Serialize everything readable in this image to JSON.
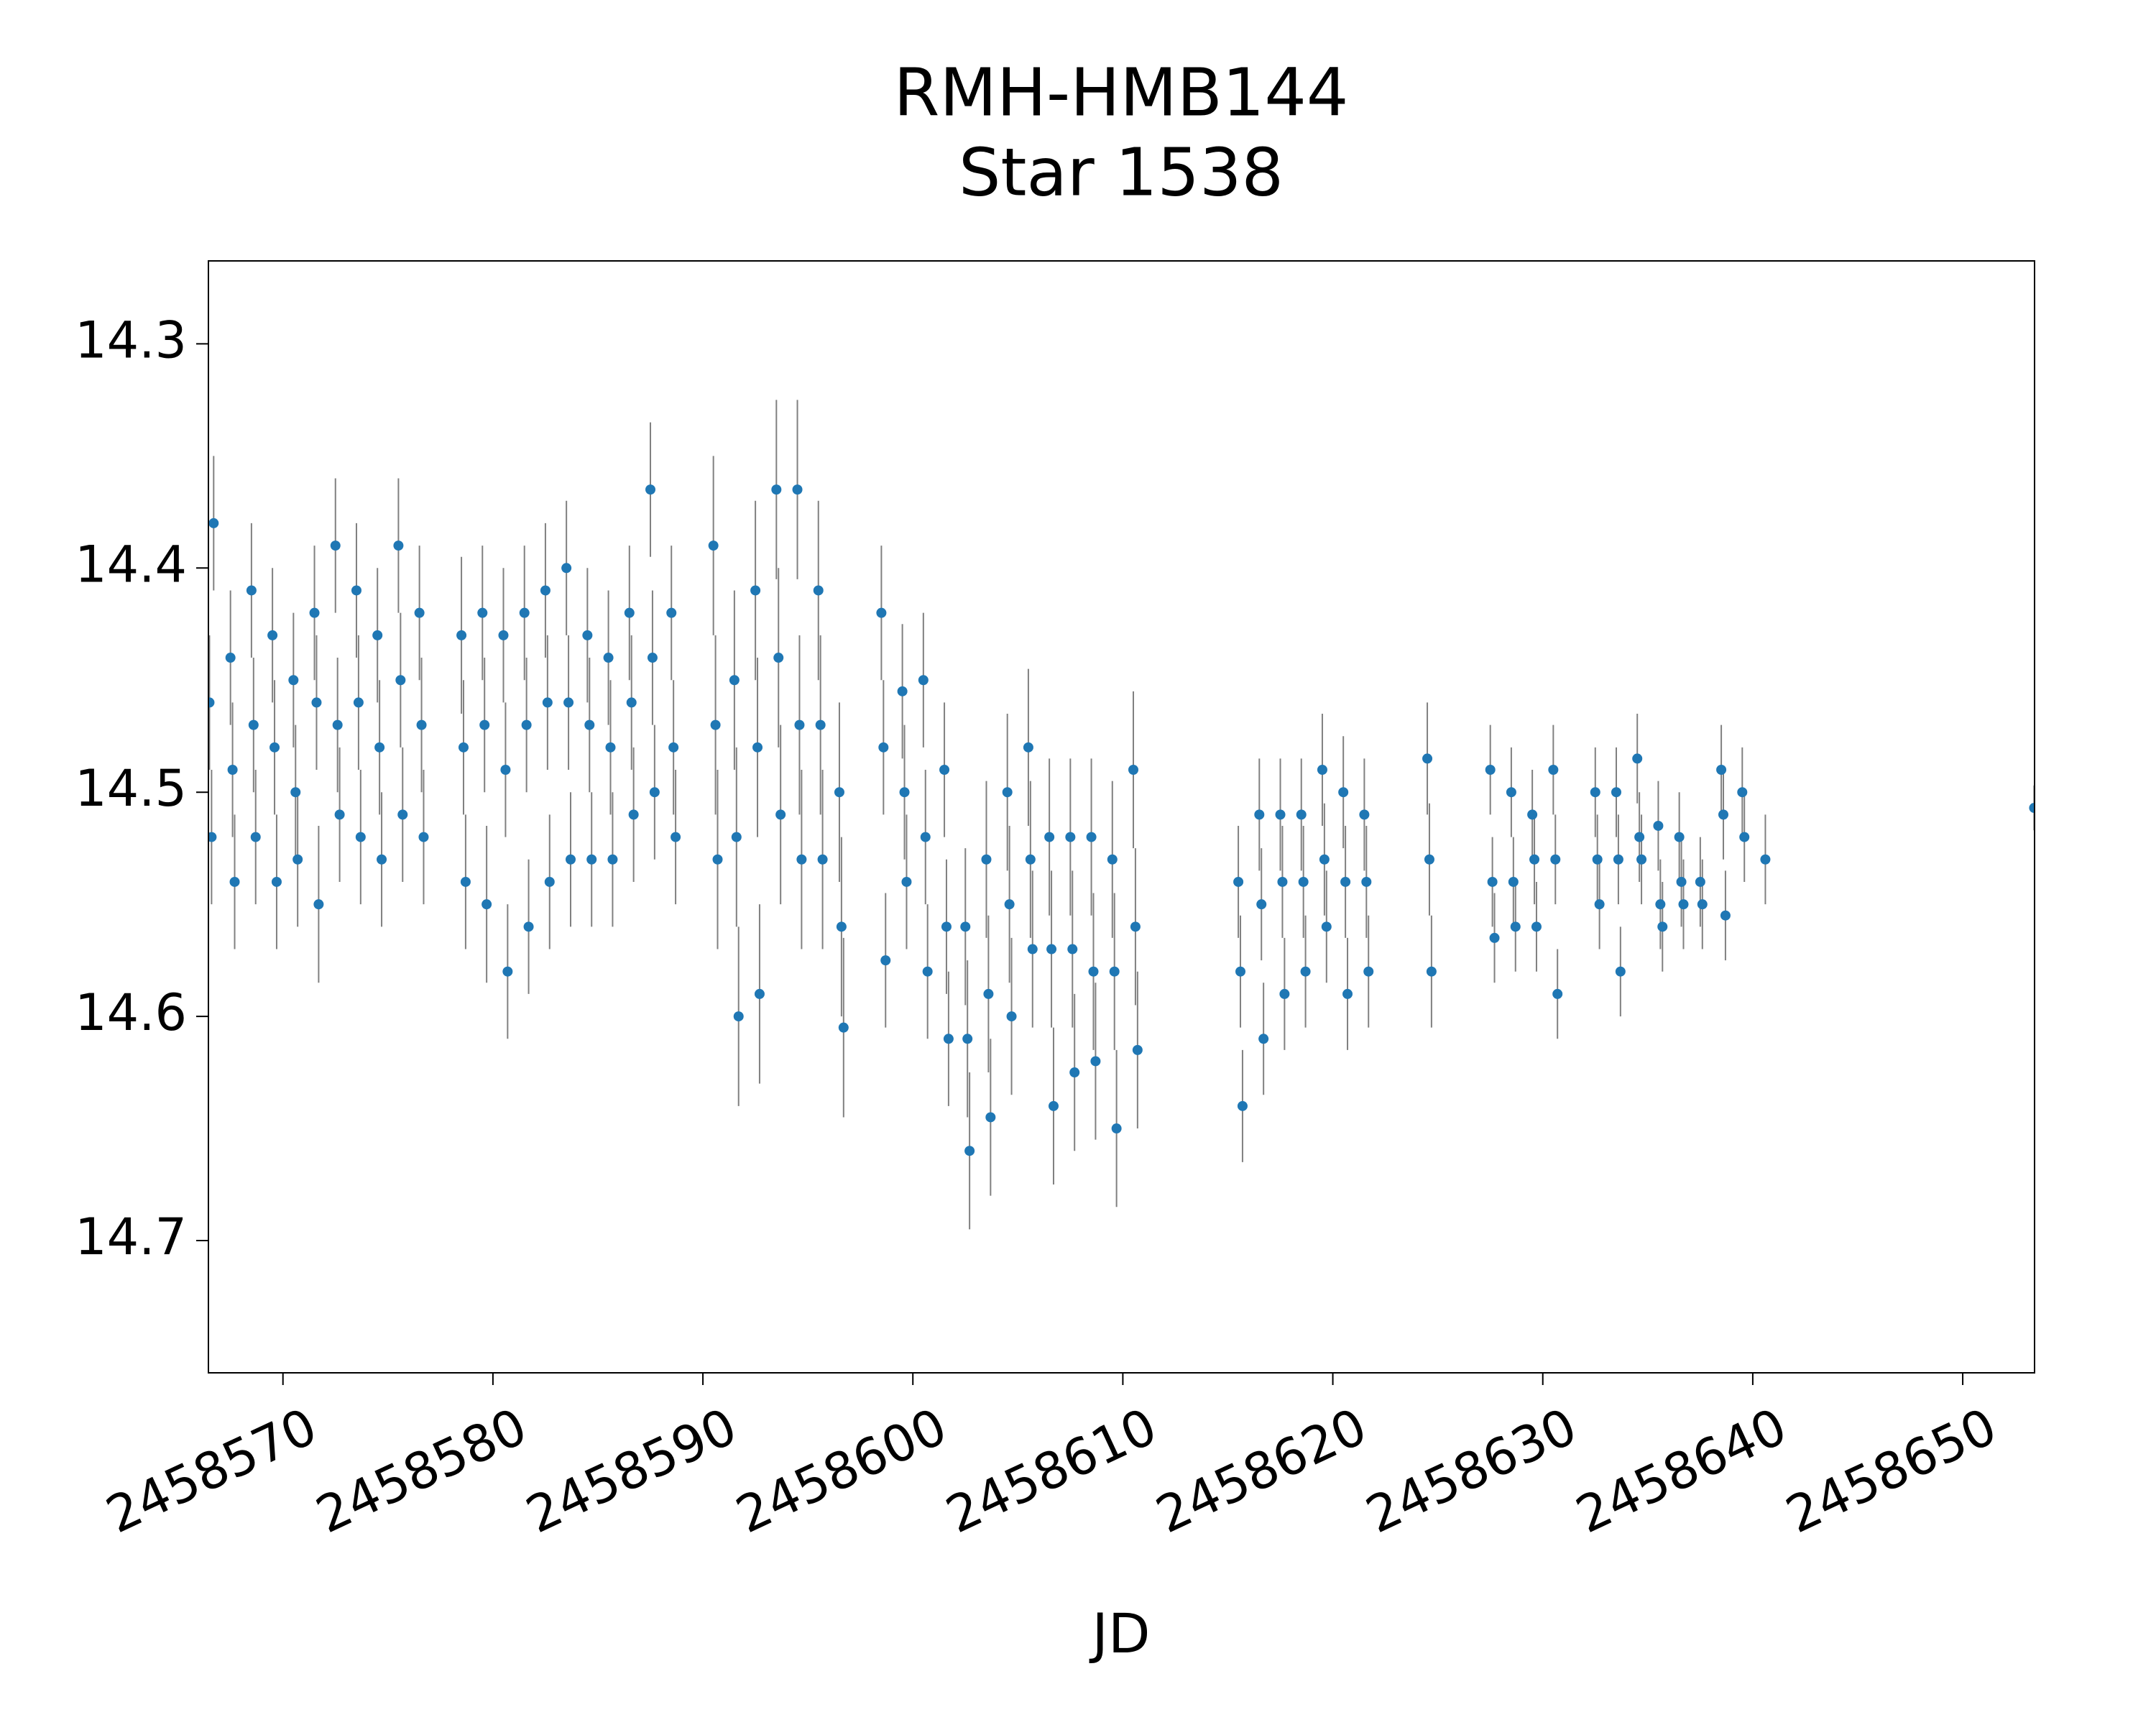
{
  "chart_data": {
    "type": "errorbar",
    "title": "RMH-HMB144",
    "subtitle": "Star 1538",
    "x_label": "JD",
    "xlim": [
      2458566.45,
      2458653.42
    ],
    "xticks": [
      2458570,
      2458580,
      2458590,
      2458600,
      2458610,
      2458620,
      2458630,
      2458640,
      2458650
    ],
    "ylim": [
      14.263,
      14.759
    ],
    "y_inverted": true,
    "yticks": [
      14.3,
      14.4,
      14.5,
      14.6,
      14.7
    ],
    "grid": false,
    "series": [
      {
        "color": "#1f77b4",
        "error_color": "#808080",
        "x": [
          2458566.5,
          2458566.6,
          2458566.7,
          2458567.5,
          2458567.6,
          2458567.7,
          2458568.5,
          2458568.6,
          2458568.7,
          2458569.5,
          2458569.6,
          2458569.7,
          2458570.5,
          2458570.6,
          2458570.7,
          2458571.5,
          2458571.6,
          2458571.7,
          2458572.5,
          2458572.6,
          2458572.7,
          2458573.5,
          2458573.6,
          2458573.7,
          2458574.5,
          2458574.6,
          2458574.7,
          2458575.5,
          2458575.6,
          2458575.7,
          2458576.5,
          2458576.6,
          2458576.7,
          2458578.5,
          2458578.6,
          2458578.7,
          2458579.5,
          2458579.6,
          2458579.7,
          2458580.5,
          2458580.6,
          2458580.7,
          2458581.5,
          2458581.6,
          2458581.7,
          2458582.5,
          2458582.6,
          2458582.7,
          2458583.5,
          2458583.6,
          2458583.7,
          2458584.5,
          2458584.6,
          2458584.7,
          2458585.5,
          2458585.6,
          2458585.7,
          2458586.5,
          2458586.6,
          2458586.7,
          2458587.5,
          2458587.6,
          2458587.7,
          2458588.5,
          2458588.6,
          2458588.7,
          2458590.5,
          2458590.6,
          2458590.7,
          2458591.5,
          2458591.6,
          2458591.7,
          2458592.5,
          2458592.6,
          2458592.7,
          2458593.5,
          2458593.6,
          2458593.7,
          2458594.5,
          2458594.6,
          2458594.7,
          2458595.5,
          2458595.6,
          2458595.7,
          2458596.5,
          2458596.6,
          2458596.7,
          2458598.5,
          2458598.6,
          2458598.7,
          2458599.5,
          2458599.6,
          2458599.7,
          2458600.5,
          2458600.6,
          2458600.7,
          2458601.5,
          2458601.6,
          2458601.7,
          2458602.5,
          2458602.6,
          2458602.7,
          2458603.5,
          2458603.6,
          2458603.7,
          2458604.5,
          2458604.6,
          2458604.7,
          2458605.5,
          2458605.6,
          2458605.7,
          2458606.5,
          2458606.6,
          2458606.7,
          2458607.5,
          2458607.6,
          2458607.7,
          2458608.5,
          2458608.6,
          2458608.7,
          2458609.5,
          2458609.6,
          2458609.7,
          2458610.5,
          2458610.6,
          2458610.7,
          2458615.5,
          2458615.6,
          2458615.7,
          2458616.5,
          2458616.6,
          2458616.7,
          2458617.5,
          2458617.6,
          2458617.7,
          2458618.5,
          2458618.6,
          2458618.7,
          2458619.5,
          2458619.6,
          2458619.7,
          2458620.5,
          2458620.6,
          2458620.7,
          2458621.5,
          2458621.6,
          2458621.7,
          2458624.5,
          2458624.6,
          2458624.7,
          2458627.5,
          2458627.6,
          2458627.7,
          2458628.5,
          2458628.6,
          2458628.7,
          2458629.5,
          2458629.6,
          2458629.7,
          2458630.5,
          2458630.6,
          2458630.7,
          2458632.5,
          2458632.6,
          2458632.7,
          2458633.5,
          2458633.6,
          2458633.7,
          2458634.5,
          2458634.6,
          2458634.7,
          2458635.5,
          2458635.6,
          2458635.7,
          2458636.5,
          2458636.6,
          2458636.7,
          2458637.5,
          2458637.6,
          2458638.5,
          2458638.6,
          2458638.7,
          2458639.5,
          2458639.6,
          2458640.6,
          2458653.4
        ],
        "values": [
          14.46,
          14.52,
          14.38,
          14.44,
          14.49,
          14.54,
          14.41,
          14.47,
          14.52,
          14.43,
          14.48,
          14.54,
          14.45,
          14.5,
          14.53,
          14.42,
          14.46,
          14.55,
          14.39,
          14.47,
          14.51,
          14.41,
          14.46,
          14.52,
          14.43,
          14.48,
          14.53,
          14.39,
          14.45,
          14.51,
          14.42,
          14.47,
          14.52,
          14.43,
          14.48,
          14.54,
          14.42,
          14.47,
          14.55,
          14.43,
          14.49,
          14.58,
          14.42,
          14.47,
          14.56,
          14.41,
          14.46,
          14.54,
          14.4,
          14.46,
          14.53,
          14.43,
          14.47,
          14.53,
          14.44,
          14.48,
          14.53,
          14.42,
          14.46,
          14.51,
          14.365,
          14.44,
          14.5,
          14.42,
          14.48,
          14.52,
          14.39,
          14.47,
          14.53,
          14.45,
          14.52,
          14.6,
          14.41,
          14.48,
          14.59,
          14.365,
          14.44,
          14.51,
          14.365,
          14.47,
          14.53,
          14.41,
          14.47,
          14.53,
          14.5,
          14.56,
          14.605,
          14.42,
          14.48,
          14.575,
          14.455,
          14.5,
          14.54,
          14.45,
          14.52,
          14.58,
          14.49,
          14.56,
          14.61,
          14.56,
          14.61,
          14.66,
          14.53,
          14.59,
          14.645,
          14.5,
          14.55,
          14.6,
          14.48,
          14.53,
          14.57,
          14.52,
          14.57,
          14.64,
          14.52,
          14.57,
          14.625,
          14.52,
          14.58,
          14.62,
          14.53,
          14.58,
          14.65,
          14.49,
          14.56,
          14.615,
          14.54,
          14.58,
          14.64,
          14.51,
          14.55,
          14.61,
          14.51,
          14.54,
          14.59,
          14.51,
          14.54,
          14.58,
          14.49,
          14.53,
          14.56,
          14.5,
          14.54,
          14.59,
          14.51,
          14.54,
          14.58,
          14.485,
          14.53,
          14.58,
          14.49,
          14.54,
          14.565,
          14.5,
          14.54,
          14.56,
          14.51,
          14.53,
          14.56,
          14.49,
          14.53,
          14.59,
          14.5,
          14.53,
          14.55,
          14.5,
          14.53,
          14.58,
          14.485,
          14.52,
          14.53,
          14.515,
          14.55,
          14.56,
          14.52,
          14.54,
          14.55,
          14.54,
          14.55,
          14.49,
          14.51,
          14.555,
          14.5,
          14.52,
          14.53,
          14.507
        ],
        "errors": [
          0.03,
          0.03,
          0.03,
          0.03,
          0.03,
          0.03,
          0.03,
          0.03,
          0.03,
          0.03,
          0.03,
          0.03,
          0.03,
          0.03,
          0.03,
          0.03,
          0.03,
          0.035,
          0.03,
          0.03,
          0.03,
          0.03,
          0.03,
          0.03,
          0.03,
          0.03,
          0.03,
          0.03,
          0.03,
          0.03,
          0.03,
          0.03,
          0.03,
          0.035,
          0.03,
          0.03,
          0.03,
          0.03,
          0.035,
          0.03,
          0.03,
          0.03,
          0.03,
          0.03,
          0.03,
          0.03,
          0.03,
          0.03,
          0.03,
          0.03,
          0.03,
          0.03,
          0.03,
          0.03,
          0.03,
          0.03,
          0.03,
          0.03,
          0.03,
          0.03,
          0.03,
          0.03,
          0.03,
          0.03,
          0.03,
          0.03,
          0.04,
          0.04,
          0.04,
          0.04,
          0.04,
          0.04,
          0.04,
          0.04,
          0.04,
          0.04,
          0.04,
          0.04,
          0.04,
          0.04,
          0.04,
          0.04,
          0.04,
          0.04,
          0.04,
          0.04,
          0.04,
          0.03,
          0.03,
          0.03,
          0.03,
          0.03,
          0.03,
          0.03,
          0.03,
          0.03,
          0.03,
          0.03,
          0.03,
          0.035,
          0.035,
          0.035,
          0.035,
          0.035,
          0.035,
          0.035,
          0.035,
          0.035,
          0.035,
          0.035,
          0.035,
          0.035,
          0.035,
          0.035,
          0.035,
          0.035,
          0.035,
          0.035,
          0.035,
          0.035,
          0.035,
          0.035,
          0.035,
          0.035,
          0.035,
          0.035,
          0.025,
          0.025,
          0.025,
          0.025,
          0.025,
          0.025,
          0.025,
          0.025,
          0.025,
          0.025,
          0.025,
          0.025,
          0.025,
          0.025,
          0.025,
          0.025,
          0.025,
          0.025,
          0.025,
          0.025,
          0.025,
          0.025,
          0.025,
          0.025,
          0.02,
          0.02,
          0.02,
          0.02,
          0.02,
          0.02,
          0.02,
          0.02,
          0.02,
          0.02,
          0.02,
          0.02,
          0.02,
          0.02,
          0.02,
          0.02,
          0.02,
          0.02,
          0.02,
          0.02,
          0.02,
          0.02,
          0.02,
          0.02,
          0.02,
          0.02,
          0.02,
          0.02,
          0.02,
          0.02,
          0.02,
          0.02,
          0.02,
          0.02,
          0.02,
          0.01
        ]
      }
    ]
  }
}
